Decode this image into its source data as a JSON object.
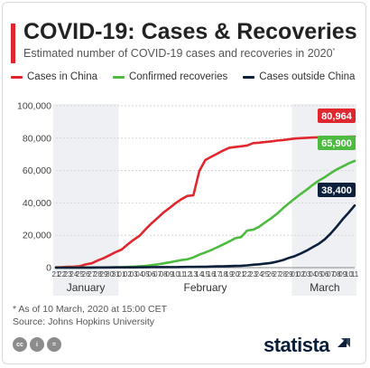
{
  "header": {
    "title": "COVID-19: Cases & Recoveries",
    "subtitle": "Estimated number of COVID-19 cases and recoveries in 2020",
    "subtitle_mark": "*"
  },
  "legend": [
    {
      "label": "Cases in China",
      "color": "#e0262e"
    },
    {
      "label": "Confirmed recoveries",
      "color": "#4cbb3f"
    },
    {
      "label": "Cases outside China",
      "color": "#0c1f3b"
    }
  ],
  "footer": {
    "note": "* As of 10 March, 2020 at 15:00 CET",
    "source": "Source: Johns Hopkins University",
    "brand": "statista"
  },
  "chart_data": {
    "type": "line",
    "title": "COVID-19: Cases & Recoveries",
    "ylim": [
      0,
      100000
    ],
    "yticks": [
      "0",
      "20,000",
      "40,000",
      "60,000",
      "80,000",
      "100,000"
    ],
    "ytick_values": [
      0,
      20000,
      40000,
      60000,
      80000,
      100000
    ],
    "x": [
      "21",
      "22",
      "23",
      "24",
      "25",
      "26",
      "27",
      "28",
      "29",
      "30",
      "31",
      "01",
      "02",
      "03",
      "04",
      "05",
      "06",
      "07",
      "08",
      "09",
      "10",
      "11",
      "12",
      "13",
      "14",
      "15",
      "16",
      "17",
      "18",
      "19",
      "20",
      "21",
      "22",
      "23",
      "24",
      "25",
      "26",
      "27",
      "28",
      "29",
      "01",
      "02",
      "03",
      "04",
      "05",
      "06",
      "07",
      "08",
      "09",
      "10",
      "11"
    ],
    "month_labels": [
      "January",
      "February",
      "March"
    ],
    "series": [
      {
        "name": "Cases in China",
        "color": "#e0262e",
        "end_label": "80,964",
        "values": [
          278,
          326,
          547,
          639,
          916,
          2000,
          2700,
          4400,
          5900,
          7700,
          9600,
          11200,
          14300,
          17200,
          19700,
          23700,
          27400,
          30600,
          34100,
          36800,
          39800,
          42300,
          44300,
          44700,
          59800,
          66500,
          68500,
          70400,
          72400,
          74100,
          74500,
          75000,
          75500,
          76900,
          77200,
          77600,
          78000,
          78500,
          78800,
          79300,
          79800,
          80000,
          80200,
          80400,
          80500,
          80600,
          80700,
          80800,
          80850,
          80900,
          80964
        ]
      },
      {
        "name": "Confirmed recoveries",
        "color": "#4cbb3f",
        "end_label": "65,900",
        "values": [
          0,
          28,
          30,
          36,
          39,
          52,
          61,
          107,
          126,
          143,
          222,
          284,
          472,
          623,
          852,
          1124,
          1487,
          2011,
          2616,
          3244,
          3946,
          4683,
          5150,
          6295,
          8058,
          9395,
          10865,
          12583,
          14352,
          16121,
          18177,
          18890,
          22886,
          23394,
          25227,
          27905,
          30384,
          33277,
          36711,
          39782,
          42716,
          45602,
          48228,
          51171,
          53797,
          55866,
          58359,
          60694,
          62494,
          64404,
          65900
        ]
      },
      {
        "name": "Cases outside China",
        "color": "#0c1f3b",
        "end_label": "38,400",
        "values": [
          4,
          6,
          8,
          14,
          23,
          49,
          64,
          87,
          105,
          118,
          153,
          173,
          183,
          188,
          212,
          227,
          265,
          309,
          321,
          345,
          361,
          395,
          441,
          447,
          505,
          526,
          683,
          794,
          804,
          924,
          1073,
          1200,
          1402,
          1769,
          2069,
          2459,
          2918,
          3664,
          4691,
          6009,
          7169,
          8774,
          10566,
          12668,
          14745,
          17481,
          21110,
          25312,
          29935,
          34000,
          38400
        ]
      }
    ]
  }
}
